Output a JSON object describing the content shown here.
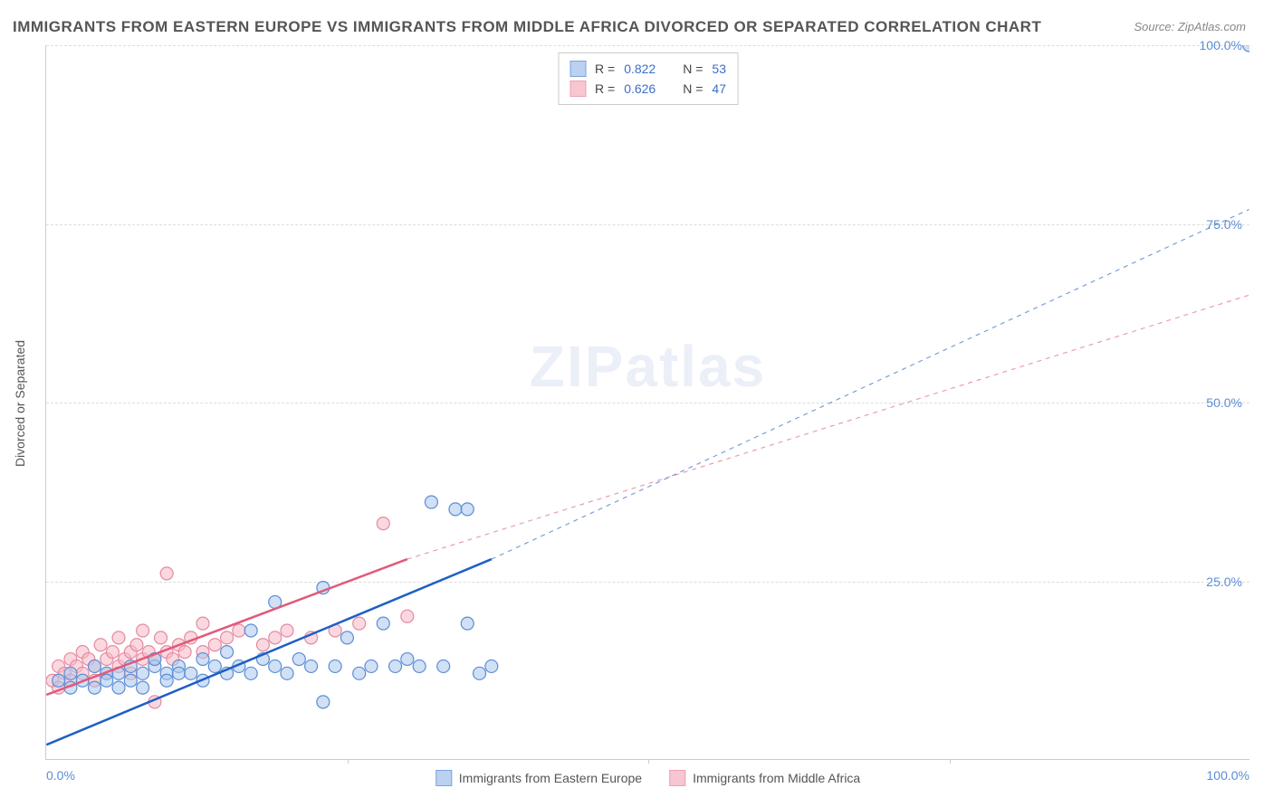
{
  "title": "IMMIGRANTS FROM EASTERN EUROPE VS IMMIGRANTS FROM MIDDLE AFRICA DIVORCED OR SEPARATED CORRELATION CHART",
  "source": "Source: ZipAtlas.com",
  "watermark": "ZIPatlas",
  "y_axis_label": "Divorced or Separated",
  "chart": {
    "type": "scatter-with-trend",
    "xlim": [
      0,
      100
    ],
    "ylim": [
      0,
      100
    ],
    "y_ticks": [
      25,
      50,
      75,
      100
    ],
    "y_tick_labels": [
      "25.0%",
      "50.0%",
      "75.0%",
      "100.0%"
    ],
    "x_tick_labels_ends": [
      "0.0%",
      "100.0%"
    ],
    "x_ticks_mid": [
      25,
      50,
      75
    ],
    "grid_color": "#dddddd",
    "background_color": "#ffffff",
    "axis_color": "#cccccc",
    "marker_radius": 7,
    "marker_stroke_width": 1.2,
    "trend_line_width": 2.5,
    "trend_dash_width": 1.2
  },
  "series": [
    {
      "name": "Immigrants from Eastern Europe",
      "key": "eastern-europe",
      "R": "0.822",
      "N": "53",
      "fill_color": "#a9c6ed",
      "stroke_color": "#5b8dd6",
      "fill_opacity": 0.55,
      "trend_color": "#1e5fc4",
      "trend_solid": {
        "x1": 0,
        "y1": 2,
        "x2": 37,
        "y2": 28
      },
      "trend_dash": {
        "x1": 37,
        "y1": 28,
        "x2": 100,
        "y2": 77
      },
      "points": [
        [
          1,
          11
        ],
        [
          2,
          10
        ],
        [
          2,
          12
        ],
        [
          3,
          11
        ],
        [
          4,
          13
        ],
        [
          4,
          10
        ],
        [
          5,
          12
        ],
        [
          5,
          11
        ],
        [
          6,
          12
        ],
        [
          6,
          10
        ],
        [
          7,
          13
        ],
        [
          7,
          11
        ],
        [
          8,
          12
        ],
        [
          8,
          10
        ],
        [
          9,
          13
        ],
        [
          9,
          14
        ],
        [
          10,
          12
        ],
        [
          10,
          11
        ],
        [
          11,
          13
        ],
        [
          11,
          12
        ],
        [
          12,
          12
        ],
        [
          13,
          14
        ],
        [
          13,
          11
        ],
        [
          14,
          13
        ],
        [
          15,
          12
        ],
        [
          15,
          15
        ],
        [
          16,
          13
        ],
        [
          17,
          18
        ],
        [
          17,
          12
        ],
        [
          18,
          14
        ],
        [
          19,
          13
        ],
        [
          19,
          22
        ],
        [
          20,
          12
        ],
        [
          21,
          14
        ],
        [
          22,
          13
        ],
        [
          23,
          8
        ],
        [
          23,
          24
        ],
        [
          24,
          13
        ],
        [
          25,
          17
        ],
        [
          26,
          12
        ],
        [
          27,
          13
        ],
        [
          28,
          19
        ],
        [
          29,
          13
        ],
        [
          30,
          14
        ],
        [
          31,
          13
        ],
        [
          32,
          36
        ],
        [
          33,
          13
        ],
        [
          34,
          35
        ],
        [
          35,
          19
        ],
        [
          35,
          35
        ],
        [
          36,
          12
        ],
        [
          37,
          13
        ],
        [
          100,
          100
        ]
      ]
    },
    {
      "name": "Immigrants from Middle Africa",
      "key": "middle-africa",
      "R": "0.626",
      "N": "47",
      "fill_color": "#f7b8c6",
      "stroke_color": "#e48aa0",
      "fill_opacity": 0.55,
      "trend_color": "#e05a7a",
      "trend_solid": {
        "x1": 0,
        "y1": 9,
        "x2": 30,
        "y2": 28
      },
      "trend_dash": {
        "x1": 30,
        "y1": 28,
        "x2": 100,
        "y2": 65
      },
      "points": [
        [
          0.5,
          11
        ],
        [
          1,
          13
        ],
        [
          1,
          10
        ],
        [
          1.5,
          12
        ],
        [
          2,
          11
        ],
        [
          2,
          14
        ],
        [
          2.5,
          13
        ],
        [
          3,
          12
        ],
        [
          3,
          15
        ],
        [
          3.5,
          14
        ],
        [
          4,
          13
        ],
        [
          4,
          11
        ],
        [
          4.5,
          16
        ],
        [
          5,
          14
        ],
        [
          5,
          12
        ],
        [
          5.5,
          15
        ],
        [
          6,
          13
        ],
        [
          6,
          17
        ],
        [
          6.5,
          14
        ],
        [
          7,
          15
        ],
        [
          7,
          12
        ],
        [
          7.5,
          16
        ],
        [
          8,
          14
        ],
        [
          8,
          18
        ],
        [
          8.5,
          15
        ],
        [
          9,
          14
        ],
        [
          9,
          8
        ],
        [
          9.5,
          17
        ],
        [
          10,
          15
        ],
        [
          10,
          26
        ],
        [
          10.5,
          14
        ],
        [
          11,
          16
        ],
        [
          11.5,
          15
        ],
        [
          12,
          17
        ],
        [
          13,
          15
        ],
        [
          13,
          19
        ],
        [
          14,
          16
        ],
        [
          15,
          17
        ],
        [
          16,
          18
        ],
        [
          18,
          16
        ],
        [
          19,
          17
        ],
        [
          20,
          18
        ],
        [
          22,
          17
        ],
        [
          24,
          18
        ],
        [
          26,
          19
        ],
        [
          28,
          33
        ],
        [
          30,
          20
        ]
      ]
    }
  ],
  "legend_top": {
    "R_label": "R =",
    "N_label": "N ="
  },
  "legend_bottom_labels": [
    "Immigrants from Eastern Europe",
    "Immigrants from Middle Africa"
  ]
}
